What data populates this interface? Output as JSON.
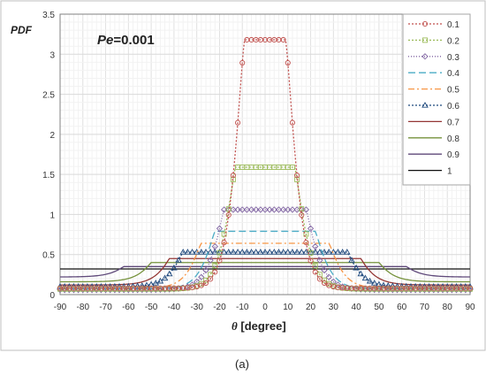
{
  "chart_data": {
    "type": "line",
    "title": "",
    "annotation": {
      "param": "Pe",
      "value": "=0.001"
    },
    "ylabel": "PDF",
    "xlabel_symbol": "θ",
    "xlabel_unit": " [degree]",
    "caption": "(a)",
    "xlim": [
      -90,
      90
    ],
    "ylim": [
      0,
      3.5
    ],
    "x_ticks": [
      -90,
      -80,
      -70,
      -60,
      -50,
      -40,
      -30,
      -20,
      -10,
      0,
      10,
      20,
      30,
      40,
      50,
      60,
      70,
      80,
      90
    ],
    "y_ticks": [
      0,
      0.5,
      1,
      1.5,
      2,
      2.5,
      3,
      3.5
    ],
    "grid": true,
    "legend_position": "top-right",
    "series": [
      {
        "name": "0.1",
        "color": "#c0504d",
        "dash": "2,2",
        "marker": "circle",
        "plateau": 3.18,
        "half_width": 9,
        "tail": 0.08,
        "alpha": 1.3
      },
      {
        "name": "0.2",
        "color": "#9bbb59",
        "dash": "2,2",
        "marker": "square",
        "plateau": 1.59,
        "half_width": 13,
        "tail": 0.07,
        "alpha": 1.25
      },
      {
        "name": "0.3",
        "color": "#8064a2",
        "dash": "1,2",
        "marker": "diamond",
        "plateau": 1.06,
        "half_width": 18,
        "tail": 0.06,
        "alpha": 1.2
      },
      {
        "name": "0.4",
        "color": "#4bacc6",
        "dash": "8,4",
        "marker": "none",
        "plateau": 0.79,
        "half_width": 22,
        "tail": 0.07,
        "alpha": 1.2
      },
      {
        "name": "0.5",
        "color": "#f79646",
        "dash": "7,3,2,3",
        "marker": "none",
        "plateau": 0.64,
        "half_width": 28,
        "tail": 0.08,
        "alpha": 1.2
      },
      {
        "name": "0.6",
        "color": "#1f497d",
        "dash": "2,2",
        "marker": "triangle",
        "plateau": 0.53,
        "half_width": 36,
        "tail": 0.1,
        "alpha": 1.2
      },
      {
        "name": "0.7",
        "color": "#943634",
        "dash": "",
        "marker": "none",
        "plateau": 0.45,
        "half_width": 42,
        "tail": 0.12,
        "alpha": 1.1
      },
      {
        "name": "0.8",
        "color": "#76923c",
        "dash": "",
        "marker": "none",
        "plateau": 0.4,
        "half_width": 50,
        "tail": 0.16,
        "alpha": 1.1
      },
      {
        "name": "0.9",
        "color": "#5f497a",
        "dash": "",
        "marker": "none",
        "plateau": 0.35,
        "half_width": 62,
        "tail": 0.22,
        "alpha": 1.1
      },
      {
        "name": "1",
        "color": "#111111",
        "dash": "",
        "marker": "none",
        "plateau": 0.32,
        "half_width": 90,
        "tail": 0.32,
        "alpha": 1.0
      }
    ]
  }
}
